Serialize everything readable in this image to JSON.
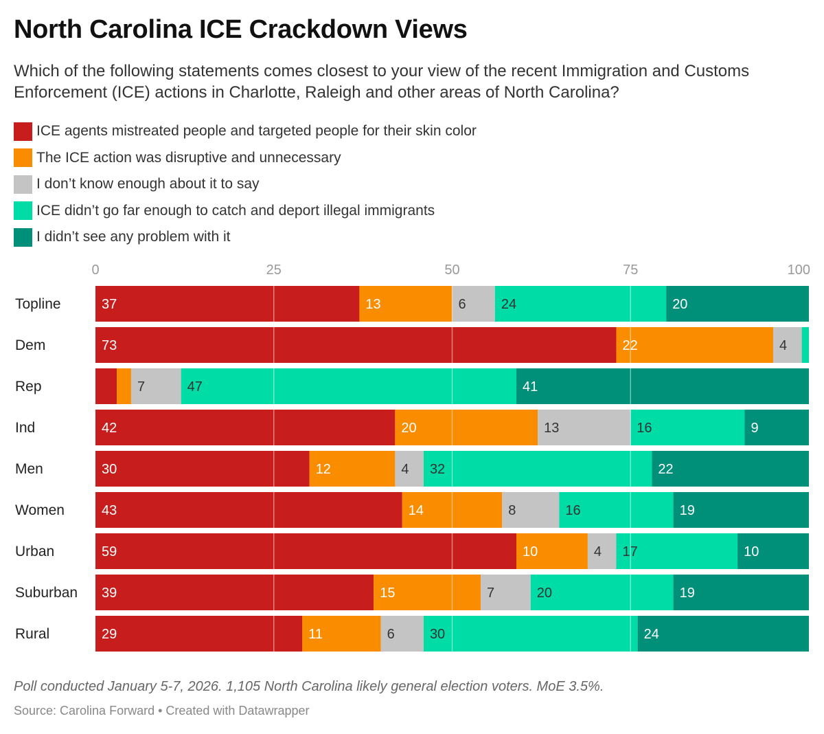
{
  "header": {
    "title": "North Carolina ICE Crackdown Views",
    "subtitle": "Which of the following statements comes closest to your view of the recent Immigration and Customs Enforcement (ICE) actions in Charlotte, Raleigh and other areas of North Carolina?"
  },
  "footer": {
    "notes": "Poll conducted January 5-7, 2026. 1,105 North Carolina likely general election voters. MoE 3.5%.",
    "source": "Source: Carolina Forward • Created with Datawrapper"
  },
  "chart_data": {
    "type": "bar",
    "orientation": "horizontal",
    "stacked": true,
    "xlim": [
      0,
      100
    ],
    "xticks": [
      "0",
      "25",
      "50",
      "75",
      "100"
    ],
    "grid": true,
    "legend_position": "top-left",
    "categories": [
      "Topline",
      "Dem",
      "Rep",
      "Ind",
      "Men",
      "Women",
      "Urban",
      "Suburban",
      "Rural"
    ],
    "series": [
      {
        "name": "ICE agents mistreated people and targeted people for their skin color",
        "color": "#c71e1d",
        "label_color": "#ffffff",
        "values": [
          37,
          73,
          3,
          42,
          30,
          43,
          59,
          39,
          29
        ],
        "labels": [
          "37",
          "73",
          "",
          "42",
          "30",
          "43",
          "59",
          "39",
          "29"
        ]
      },
      {
        "name": "The ICE action was disruptive and unnecessary",
        "color": "#fa8c00",
        "label_color": "#ffffff",
        "values": [
          13,
          22,
          2,
          20,
          12,
          14,
          10,
          15,
          11
        ],
        "labels": [
          "13",
          "22",
          "",
          "20",
          "12",
          "14",
          "10",
          "15",
          "11"
        ]
      },
      {
        "name": "I don’t know enough about it to say",
        "color": "#c4c4c4",
        "label_color": "#333333",
        "values": [
          6,
          4,
          7,
          13,
          4,
          8,
          4,
          7,
          6
        ],
        "labels": [
          "6",
          "4",
          "7",
          "13",
          "4",
          "8",
          "4",
          "7",
          "6"
        ]
      },
      {
        "name": "ICE didn’t go far enough to catch and deport illegal immigrants",
        "color": "#00dca6",
        "label_color": "#333333",
        "values": [
          24,
          1,
          47,
          16,
          32,
          16,
          17,
          20,
          30
        ],
        "labels": [
          "24",
          "",
          "47",
          "16",
          "32",
          "16",
          "17",
          "20",
          "30"
        ]
      },
      {
        "name": "I didn’t see any problem with it",
        "color": "#008f78",
        "label_color": "#ffffff",
        "values": [
          20,
          0,
          41,
          9,
          22,
          19,
          10,
          19,
          24
        ],
        "labels": [
          "20",
          "",
          "41",
          "9",
          "22",
          "19",
          "10",
          "19",
          "24"
        ]
      }
    ]
  }
}
